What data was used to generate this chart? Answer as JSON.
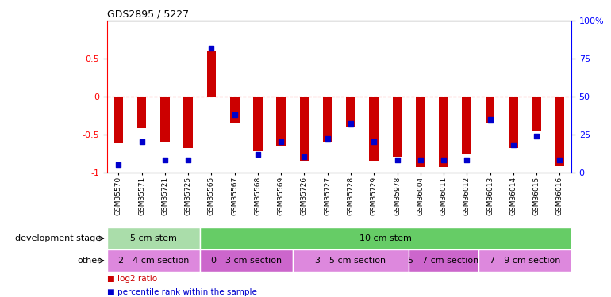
{
  "title": "GDS2895 / 5227",
  "samples": [
    "GSM35570",
    "GSM35571",
    "GSM35721",
    "GSM35725",
    "GSM35565",
    "GSM35567",
    "GSM35568",
    "GSM35569",
    "GSM35726",
    "GSM35727",
    "GSM35728",
    "GSM35729",
    "GSM35978",
    "GSM36004",
    "GSM36011",
    "GSM36012",
    "GSM36013",
    "GSM36014",
    "GSM36015",
    "GSM36016"
  ],
  "log2_ratio": [
    -0.62,
    -0.42,
    -0.6,
    -0.68,
    0.6,
    -0.35,
    -0.72,
    -0.65,
    -0.85,
    -0.6,
    -0.4,
    -0.85,
    -0.8,
    -0.93,
    -0.93,
    -0.75,
    -0.35,
    -0.68,
    -0.45,
    -0.92
  ],
  "percentile": [
    5,
    20,
    8,
    8,
    82,
    38,
    12,
    20,
    10,
    22,
    32,
    20,
    8,
    8,
    8,
    8,
    35,
    18,
    24,
    8
  ],
  "bar_color": "#cc0000",
  "dot_color": "#0000cc",
  "bg_color": "#ffffff",
  "zero_line_color": "#ff0000",
  "grid_color": "#000000",
  "dev_stage_row": [
    {
      "label": "5 cm stem",
      "start": 0,
      "end": 4,
      "color": "#aaddaa"
    },
    {
      "label": "10 cm stem",
      "start": 4,
      "end": 20,
      "color": "#66cc66"
    }
  ],
  "other_row": [
    {
      "label": "2 - 4 cm section",
      "start": 0,
      "end": 4,
      "color": "#dd88dd"
    },
    {
      "label": "0 - 3 cm section",
      "start": 4,
      "end": 8,
      "color": "#cc66cc"
    },
    {
      "label": "3 - 5 cm section",
      "start": 8,
      "end": 13,
      "color": "#dd88dd"
    },
    {
      "label": "5 - 7 cm section",
      "start": 13,
      "end": 16,
      "color": "#cc66cc"
    },
    {
      "label": "7 - 9 cm section",
      "start": 16,
      "end": 20,
      "color": "#dd88dd"
    }
  ],
  "legend_items": [
    {
      "label": "log2 ratio",
      "color": "#cc0000"
    },
    {
      "label": "percentile rank within the sample",
      "color": "#0000cc"
    }
  ],
  "row_label_dev": "development stage",
  "row_label_other": "other"
}
